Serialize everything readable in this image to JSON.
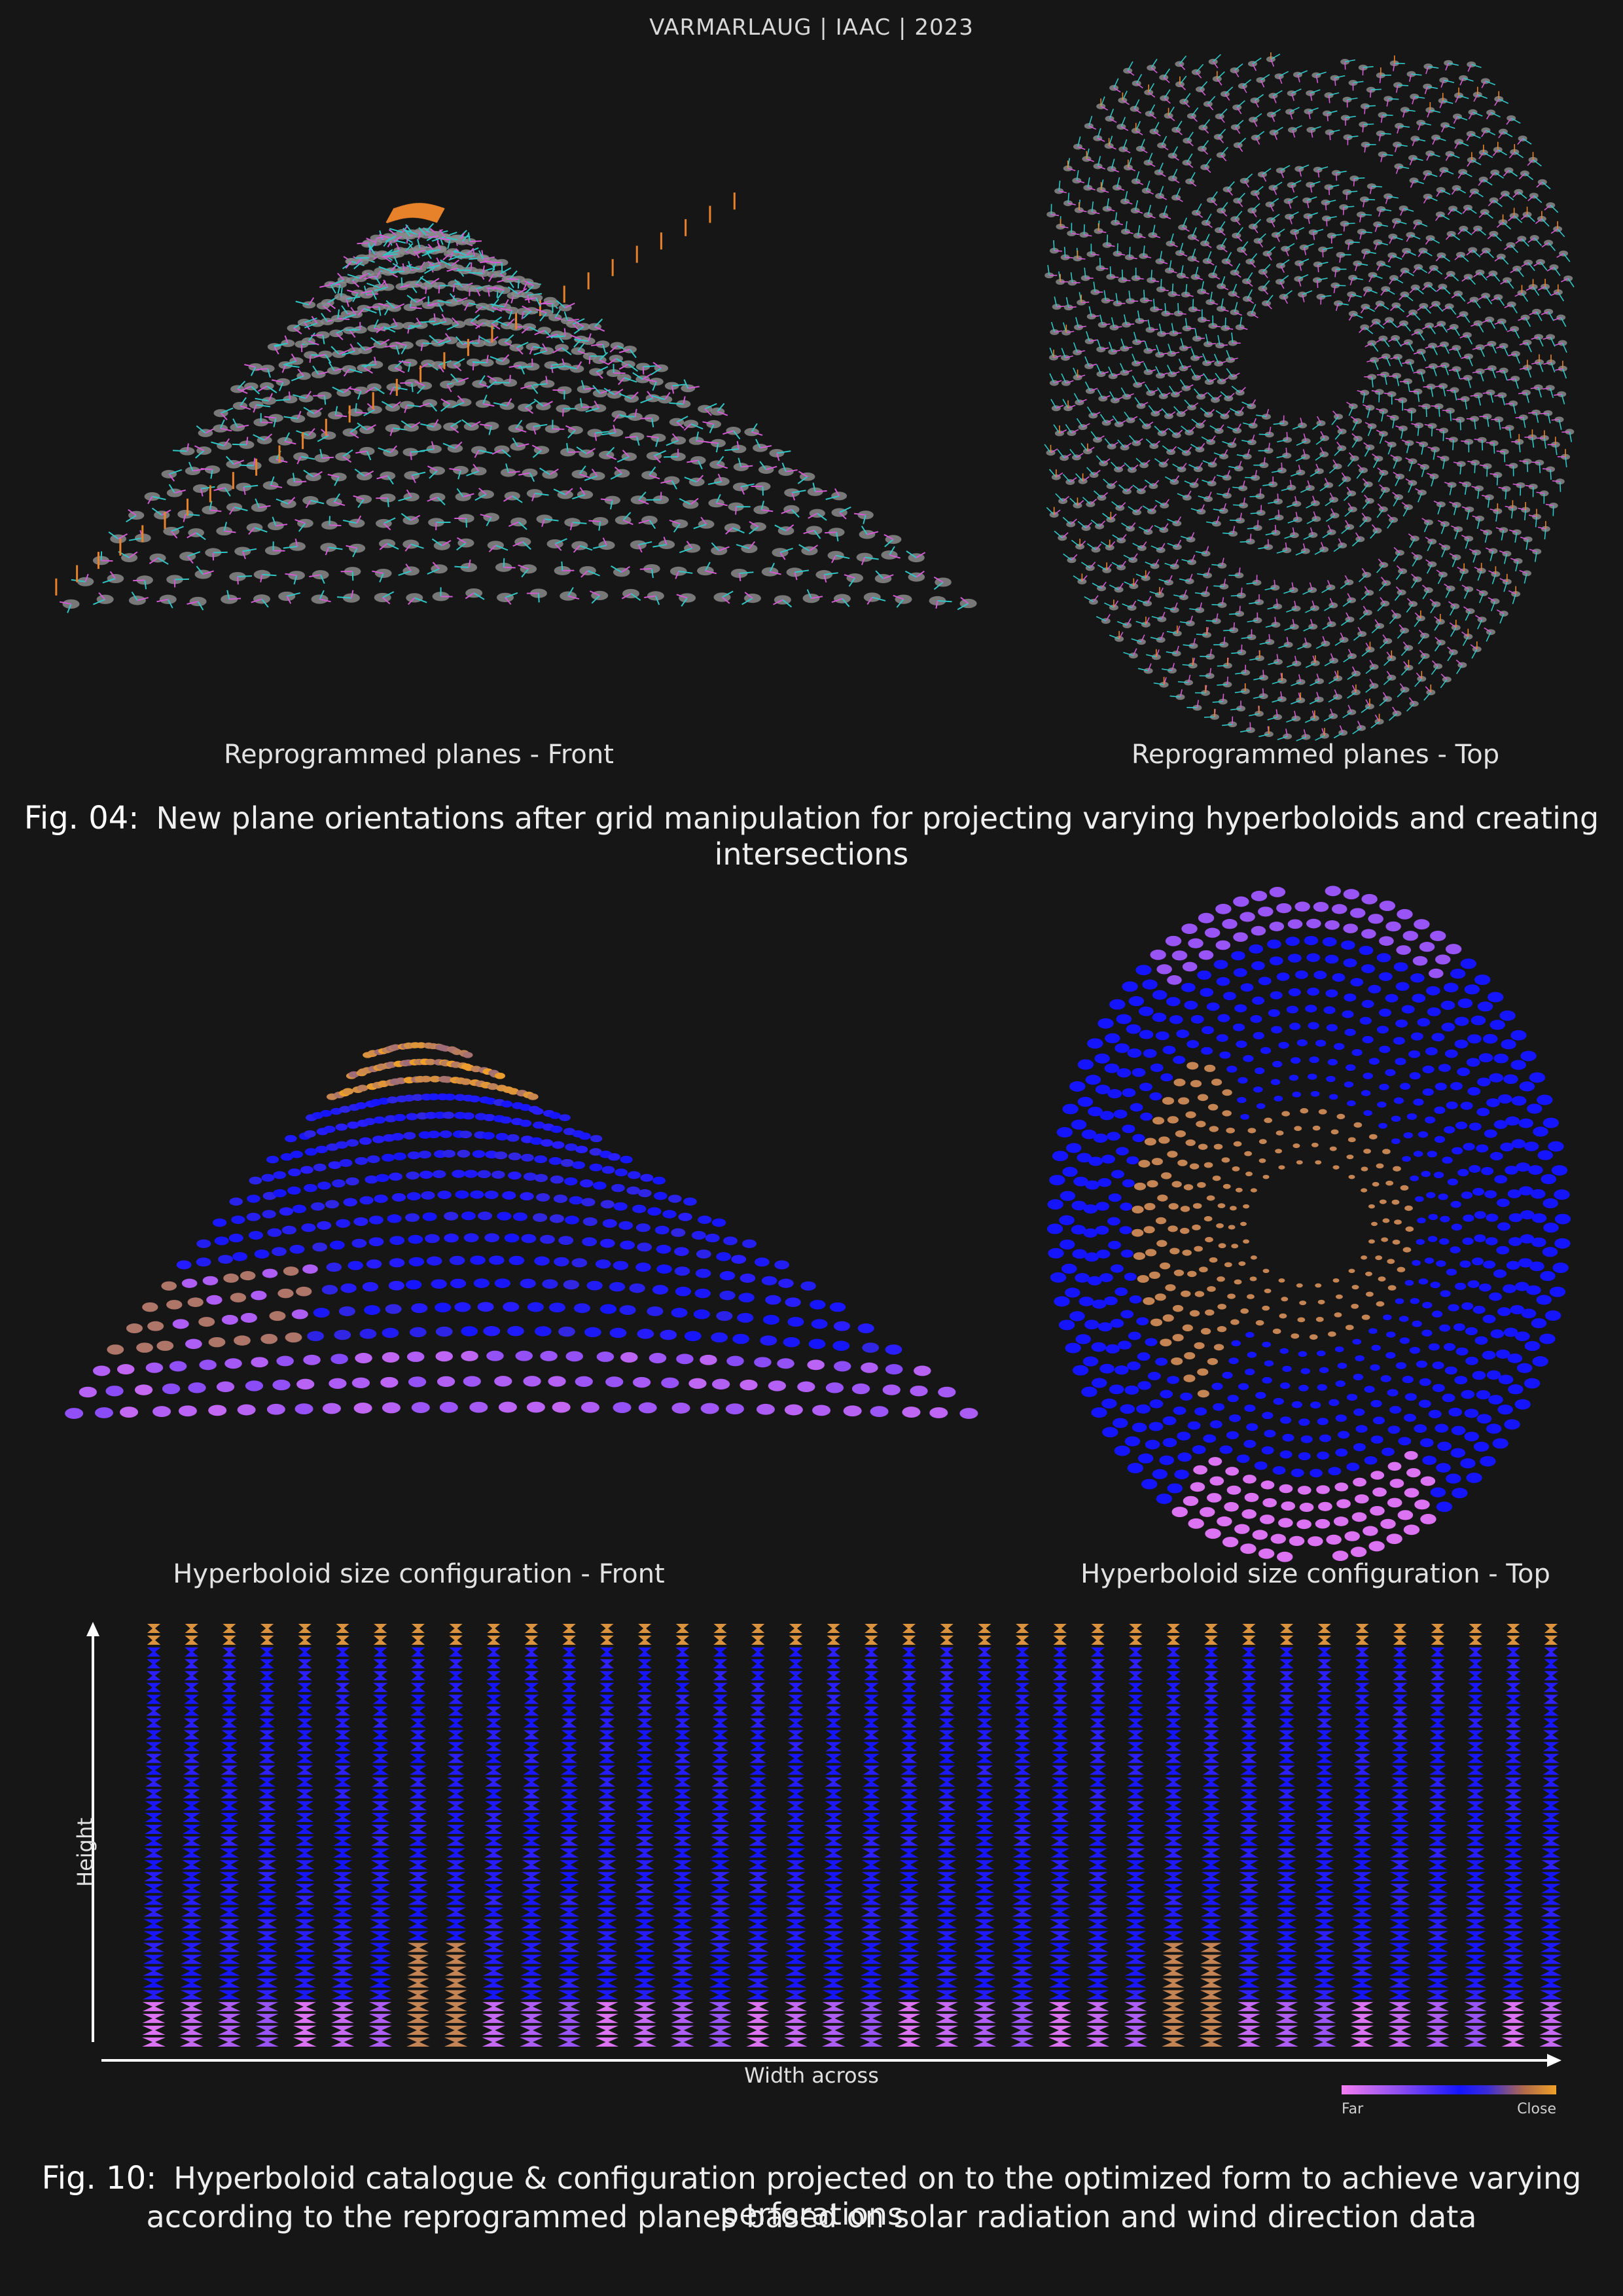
{
  "header": {
    "title": "VARMARLAUG | IAAC | 2023"
  },
  "figure04": {
    "front_label": "Reprogrammed planes - Front",
    "top_label": "Reprogrammed planes - Top",
    "number": "Fig. 04:",
    "caption": "New plane orientations after grid manipulation for projecting varying hyperboloids and creating intersections"
  },
  "figure10": {
    "front_label": "Hyperboloid size configuration - Front",
    "top_label": "Hyperboloid size configuration - Top",
    "number": "Fig. 10:",
    "caption_line1": "Hyperboloid catalogue & configuration projected on to the optimized form to achieve varying perforations",
    "caption_line2": "according to the reprogrammed planes based on solar radiation and wind direction data"
  },
  "catalogue": {
    "y_axis_label": "Height",
    "x_axis_label": "Width across",
    "columns": 38,
    "rows": 36
  },
  "legend": {
    "far_label": "Far",
    "close_label": "Close",
    "colors": {
      "far": "#f27ef0",
      "mid": "#1414ff",
      "close": "#f0a028"
    }
  },
  "colors": {
    "background": "#161616",
    "plane_gray": "#8a8a8a",
    "axis_orange": "#e8822a",
    "axis_cyan": "#2fc6c6",
    "axis_magenta": "#d25ad2"
  }
}
